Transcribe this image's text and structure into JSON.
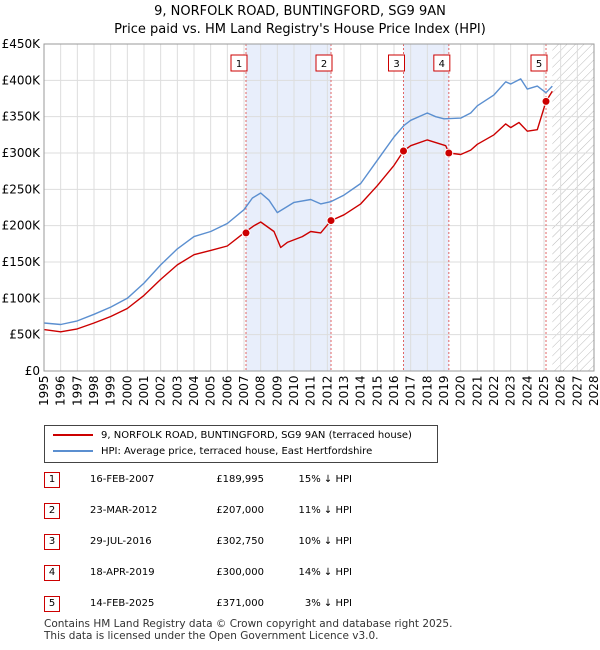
{
  "chart_data": {
    "type": "line",
    "title": "9, NORFOLK ROAD, BUNTINGFORD, SG9 9AN",
    "subtitle": "Price paid vs. HM Land Registry's House Price Index (HPI)",
    "xlim": [
      1995,
      2028
    ],
    "ylim": [
      0,
      450000
    ],
    "x_ticks": [
      "1995",
      "1996",
      "1997",
      "1998",
      "1999",
      "2000",
      "2001",
      "2002",
      "2003",
      "2004",
      "2005",
      "2006",
      "2007",
      "2008",
      "2009",
      "2010",
      "2011",
      "2012",
      "2013",
      "2014",
      "2015",
      "2016",
      "2017",
      "2018",
      "2019",
      "2020",
      "2021",
      "2022",
      "2023",
      "2024",
      "2025",
      "2026",
      "2027",
      "2028"
    ],
    "y_ticks": [
      {
        "value": 0,
        "label": "£0"
      },
      {
        "value": 50000,
        "label": "£50K"
      },
      {
        "value": 100000,
        "label": "£100K"
      },
      {
        "value": 150000,
        "label": "£150K"
      },
      {
        "value": 200000,
        "label": "£200K"
      },
      {
        "value": 250000,
        "label": "£250K"
      },
      {
        "value": 300000,
        "label": "£300K"
      },
      {
        "value": 350000,
        "label": "£350K"
      },
      {
        "value": 400000,
        "label": "£400K"
      },
      {
        "value": 450000,
        "label": "£450K"
      }
    ],
    "series": [
      {
        "name": "9, NORFOLK ROAD, BUNTINGFORD, SG9 9AN (terraced house)",
        "color": "#cc0000",
        "points": [
          [
            1995,
            57000
          ],
          [
            1996,
            54000
          ],
          [
            1997,
            58000
          ],
          [
            1998,
            66000
          ],
          [
            1999,
            75000
          ],
          [
            2000,
            86000
          ],
          [
            2001,
            104000
          ],
          [
            2002,
            126000
          ],
          [
            2003,
            146000
          ],
          [
            2004,
            160000
          ],
          [
            2005,
            166000
          ],
          [
            2006,
            172000
          ],
          [
            2007,
            189995
          ],
          [
            2007.6,
            200000
          ],
          [
            2008,
            205000
          ],
          [
            2008.8,
            192000
          ],
          [
            2009.2,
            170000
          ],
          [
            2009.6,
            177000
          ],
          [
            2010.5,
            185000
          ],
          [
            2011,
            192000
          ],
          [
            2011.6,
            190000
          ],
          [
            2012.22,
            207000
          ],
          [
            2013,
            215000
          ],
          [
            2014,
            230000
          ],
          [
            2015,
            255000
          ],
          [
            2016,
            283000
          ],
          [
            2016.57,
            302750
          ],
          [
            2017,
            310000
          ],
          [
            2018,
            318000
          ],
          [
            2019.1,
            310000
          ],
          [
            2019.3,
            300000
          ],
          [
            2020,
            298000
          ],
          [
            2020.6,
            304000
          ],
          [
            2021,
            312000
          ],
          [
            2022,
            325000
          ],
          [
            2022.7,
            340000
          ],
          [
            2023,
            335000
          ],
          [
            2023.5,
            342000
          ],
          [
            2024,
            330000
          ],
          [
            2024.6,
            332000
          ],
          [
            2025.12,
            371000
          ],
          [
            2025.5,
            385000
          ]
        ]
      },
      {
        "name": "HPI: Average price, terraced house, East Hertfordshire",
        "color": "#5b8fd0",
        "points": [
          [
            1995,
            66000
          ],
          [
            1996,
            64000
          ],
          [
            1997,
            69000
          ],
          [
            1998,
            78000
          ],
          [
            1999,
            88000
          ],
          [
            2000,
            100000
          ],
          [
            2001,
            121000
          ],
          [
            2002,
            146000
          ],
          [
            2003,
            168000
          ],
          [
            2004,
            185000
          ],
          [
            2005,
            192000
          ],
          [
            2006,
            203000
          ],
          [
            2007,
            222000
          ],
          [
            2007.5,
            238000
          ],
          [
            2008,
            245000
          ],
          [
            2008.5,
            235000
          ],
          [
            2009,
            218000
          ],
          [
            2009.5,
            225000
          ],
          [
            2010,
            232000
          ],
          [
            2011,
            236000
          ],
          [
            2011.6,
            230000
          ],
          [
            2012.2,
            233000
          ],
          [
            2013,
            242000
          ],
          [
            2014,
            258000
          ],
          [
            2015,
            290000
          ],
          [
            2016,
            322000
          ],
          [
            2016.6,
            338000
          ],
          [
            2017,
            345000
          ],
          [
            2018,
            355000
          ],
          [
            2018.5,
            350000
          ],
          [
            2019,
            347000
          ],
          [
            2020,
            348000
          ],
          [
            2020.6,
            355000
          ],
          [
            2021,
            365000
          ],
          [
            2022,
            380000
          ],
          [
            2022.7,
            398000
          ],
          [
            2023,
            395000
          ],
          [
            2023.6,
            402000
          ],
          [
            2024,
            388000
          ],
          [
            2024.6,
            392000
          ],
          [
            2025.12,
            383000
          ],
          [
            2025.5,
            392000
          ]
        ]
      }
    ],
    "transactions": [
      {
        "n": "1",
        "date": "16-FEB-2007",
        "x": 2007.12,
        "price": "£189,995",
        "value": 189995,
        "hpi": "15% ↓ HPI"
      },
      {
        "n": "2",
        "date": "23-MAR-2012",
        "x": 2012.22,
        "price": "£207,000",
        "value": 207000,
        "hpi": "11% ↓ HPI"
      },
      {
        "n": "3",
        "date": "29-JUL-2016",
        "x": 2016.57,
        "price": "£302,750",
        "value": 302750,
        "hpi": "10% ↓ HPI"
      },
      {
        "n": "4",
        "date": "18-APR-2019",
        "x": 2019.29,
        "price": "£300,000",
        "value": 300000,
        "hpi": "14% ↓ HPI"
      },
      {
        "n": "5",
        "date": "14-FEB-2025",
        "x": 2025.12,
        "price": "£371,000",
        "value": 371000,
        "hpi": "3% ↓ HPI"
      }
    ],
    "highlight_spans": [
      [
        2007.12,
        2012.22
      ],
      [
        2016.57,
        2019.29
      ]
    ],
    "future_from": 2025.5
  },
  "legend": {
    "property": "9, NORFOLK ROAD, BUNTINGFORD, SG9 9AN (terraced house)",
    "hpi": "HPI: Average price, terraced house, East Hertfordshire"
  },
  "footer": {
    "line1": "Contains HM Land Registry data © Crown copyright and database right 2025.",
    "line2": "This data is licensed under the Open Government Licence v3.0."
  },
  "colors": {
    "price": "#cc0000",
    "hpi": "#5b8fd0",
    "span": "#e8eefb",
    "grid": "#dddddd"
  }
}
